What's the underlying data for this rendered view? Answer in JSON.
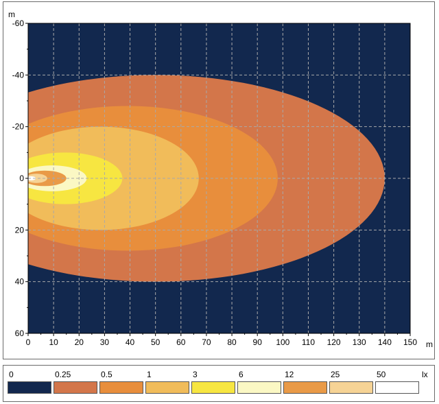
{
  "chart_data": {
    "type": "heatmap",
    "title": "",
    "xlabel": "m",
    "ylabel": "m",
    "xlim": [
      0,
      150
    ],
    "ylim": [
      -60,
      60
    ],
    "y_axis_inverted": true,
    "grid": true,
    "background_color": "#12284e",
    "x_ticks": [
      "0",
      "10",
      "20",
      "30",
      "40",
      "50",
      "60",
      "70",
      "80",
      "90",
      "100",
      "110",
      "120",
      "130",
      "140",
      "150"
    ],
    "y_ticks": [
      "-60",
      "-40",
      "-20",
      "0",
      "20",
      "40",
      "60"
    ],
    "isolux_zones": [
      {
        "level": "0.25",
        "color": "#d3764a",
        "x_start": -40,
        "x_end": 140,
        "half_width": 40
      },
      {
        "level": "0.5",
        "color": "#e88e3c",
        "x_start": -20,
        "x_end": 98,
        "half_width": 28
      },
      {
        "level": "1",
        "color": "#f1bc5a",
        "x_start": -10,
        "x_end": 67,
        "half_width": 20
      },
      {
        "level": "3",
        "color": "#f7e641",
        "x_start": -8,
        "x_end": 37,
        "half_width": 10
      },
      {
        "level": "6",
        "color": "#fbf8c4",
        "x_start": -4,
        "x_end": 23,
        "half_width": 5
      },
      {
        "level": "12",
        "color": "#e99a47",
        "x_start": -2,
        "x_end": 15,
        "half_width": 3
      },
      {
        "level": "25",
        "color": "#f6d395",
        "x_start": -1,
        "x_end": 7.5,
        "half_width": 1.8
      },
      {
        "level": "50",
        "color": "#ffffff",
        "x_start": -0.5,
        "x_end": 3,
        "half_width": 0.8
      }
    ]
  },
  "legend": {
    "unit": "lx",
    "items": [
      {
        "label": "0",
        "color": "#12284e"
      },
      {
        "label": "0.25",
        "color": "#d3764a"
      },
      {
        "label": "0.5",
        "color": "#e88e3c"
      },
      {
        "label": "1",
        "color": "#f1bc5a"
      },
      {
        "label": "3",
        "color": "#f7e641"
      },
      {
        "label": "6",
        "color": "#fbf8c4"
      },
      {
        "label": "12",
        "color": "#e99a47"
      },
      {
        "label": "25",
        "color": "#f6d395"
      },
      {
        "label": "50",
        "color": "#ffffff"
      }
    ]
  }
}
